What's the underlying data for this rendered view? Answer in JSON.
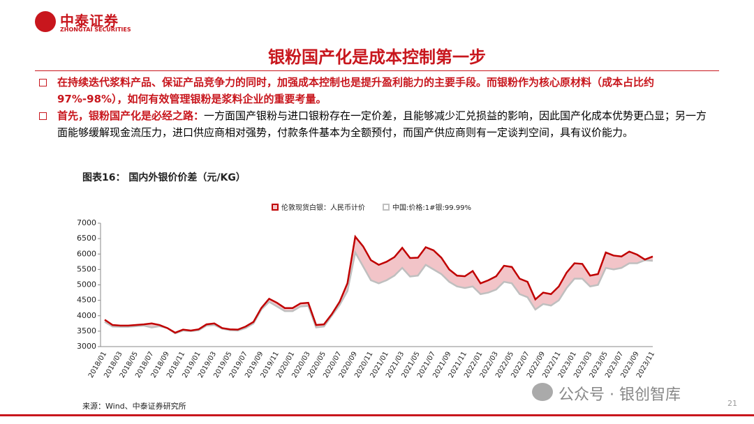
{
  "header": {
    "company": "中泰证券",
    "company_en": "ZHONGTAI SECURITIES",
    "title": "银粉国产化是成本控制第一步"
  },
  "bullets": [
    {
      "parts": [
        "在持续迭代浆料产品、保证产品竞争力的同时，加强成本控制也是提升盈利能力的主要手段。而银粉作为核心原材料（成本占比约97%-98%），如何有效管理银粉是浆料企业的重要考量。"
      ]
    },
    {
      "parts": [
        "首先，银粉国产化是必经之路：",
        "一方面国产银粉与进口银粉存在一定价差，且能够减少汇兑损益的影响，因此国产化成本优势更凸显；另一方面能够缓解现金流压力，进口供应商相对强势，付款条件基本为全额预付，而国产供应商则有一定谈判空间，具有议价能力。"
      ]
    }
  ],
  "figure_title": "图表16：  国内外银价价差（元/KG）",
  "source": "来源：Wind、中泰证券研究所",
  "watermark": "公众号 · 银创智库",
  "page_number": "21",
  "chart_data": {
    "type": "line",
    "categories": [
      "2018/01",
      null,
      "2018/03",
      null,
      "2018/05",
      null,
      "2018/07",
      null,
      "2018/09",
      null,
      "2018/11",
      null,
      "2019/01",
      null,
      "2019/03",
      null,
      "2019/05",
      null,
      "2019/07",
      null,
      "2019/09",
      null,
      "2019/11",
      null,
      "2020/01",
      null,
      "2020/03",
      null,
      "2020/05",
      null,
      "2020/07",
      null,
      "2020/09",
      null,
      "2020/11",
      null,
      "2021/01",
      null,
      "2021/03",
      null,
      "2021/05",
      null,
      "2021/07",
      null,
      "2021/09",
      null,
      "2021/11",
      null,
      "2022/01",
      null,
      "2022/03",
      null,
      "2022/05",
      null,
      "2022/07",
      null,
      "2022/09",
      null,
      "2022/11",
      null,
      "2023/01",
      null,
      "2023/03",
      null,
      "2023/05",
      null,
      "2023/07",
      null,
      "2023/09",
      null,
      "2023/11"
    ],
    "series": [
      {
        "name": "伦敦现货白银：人民币计价",
        "color": "#c00000",
        "values": [
          3870,
          3700,
          3680,
          3680,
          3700,
          3720,
          3750,
          3700,
          3600,
          3450,
          3550,
          3520,
          3560,
          3720,
          3750,
          3600,
          3560,
          3550,
          3650,
          3800,
          4250,
          4550,
          4420,
          4250,
          4250,
          4400,
          4420,
          3700,
          3720,
          4050,
          4450,
          5050,
          6560,
          6250,
          5800,
          5650,
          5750,
          5900,
          6200,
          5870,
          5880,
          6220,
          6120,
          5880,
          5500,
          5300,
          5280,
          5450,
          5050,
          5150,
          5280,
          5620,
          5580,
          5200,
          5100,
          4530,
          4750,
          4700,
          4950,
          5400,
          5700,
          5680,
          5300,
          5350,
          6050,
          5950,
          5920,
          6080,
          5980,
          5820,
          5920
        ]
      },
      {
        "name": "中国:价格:1#银:99.99%",
        "color": "#bfbfbf",
        "values": [
          3800,
          3650,
          3640,
          3640,
          3660,
          3680,
          3620,
          3660,
          3600,
          3430,
          3520,
          3500,
          3530,
          3680,
          3700,
          3580,
          3530,
          3520,
          3600,
          3750,
          4200,
          4450,
          4300,
          4150,
          4150,
          4300,
          4320,
          3620,
          3650,
          4000,
          4350,
          4800,
          6050,
          5600,
          5150,
          5050,
          5150,
          5300,
          5550,
          5270,
          5300,
          5650,
          5500,
          5350,
          5100,
          4950,
          4900,
          4950,
          4700,
          4750,
          4850,
          5100,
          5050,
          4700,
          4600,
          4200,
          4380,
          4330,
          4500,
          4900,
          5200,
          5200,
          4950,
          5000,
          5550,
          5500,
          5550,
          5700,
          5700,
          5800,
          5780
        ]
      }
    ],
    "band_color": "#f2c4c8",
    "ylim": [
      3000,
      7000
    ],
    "yticks": [
      3000,
      3500,
      4000,
      4500,
      5000,
      5500,
      6000,
      6500,
      7000
    ],
    "grid": false,
    "legend": "top"
  }
}
